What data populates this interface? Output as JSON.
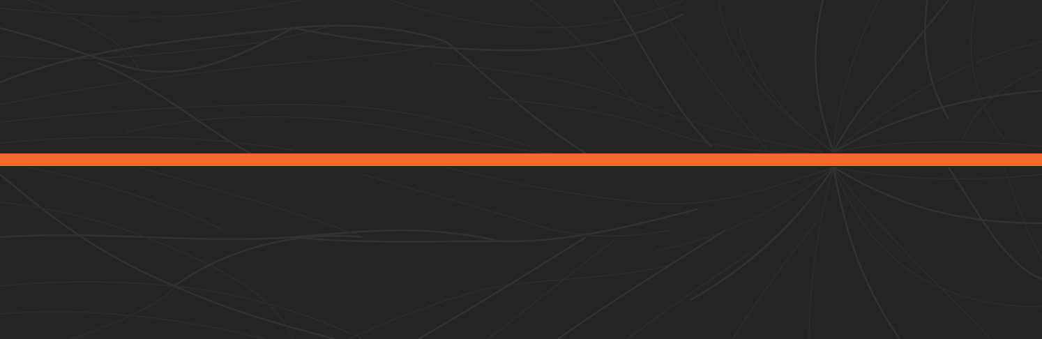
{
  "background": {
    "color": "#252525",
    "pattern_color": "#2d302f",
    "pattern": "leaf-lines"
  },
  "accent_stripe": {
    "color": "#f26a2c"
  }
}
